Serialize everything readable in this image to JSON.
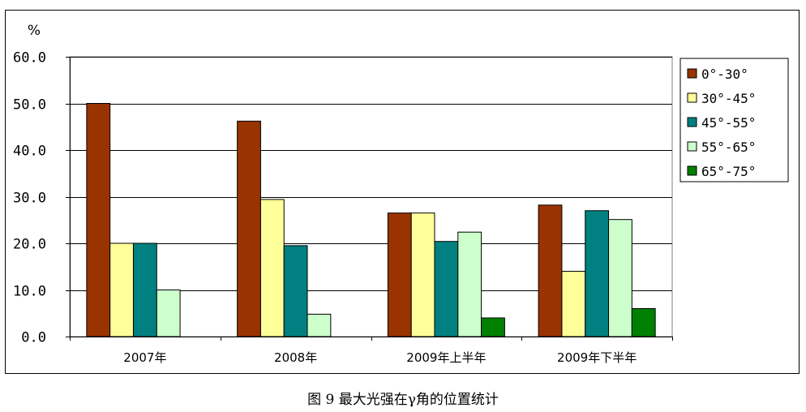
{
  "chart_data": {
    "type": "bar",
    "y_unit": "%",
    "ylim": [
      0,
      60
    ],
    "y_ticks": [
      "0.0",
      "10.0",
      "20.0",
      "30.0",
      "40.0",
      "50.0",
      "60.0"
    ],
    "categories": [
      "2007年",
      "2008年",
      "2009年上半年",
      "2009年下半年"
    ],
    "series": [
      {
        "name": "0°-30°",
        "color": "#993300",
        "values": [
          50.0,
          46.2,
          26.5,
          28.2
        ]
      },
      {
        "name": "30°-45°",
        "color": "#FFFF99",
        "values": [
          20.0,
          29.4,
          26.5,
          14.0
        ]
      },
      {
        "name": "45°-55°",
        "color": "#008080",
        "values": [
          20.0,
          19.5,
          20.4,
          27.0
        ]
      },
      {
        "name": "55°-65°",
        "color": "#CCFFCC",
        "values": [
          10.0,
          4.8,
          22.4,
          25.1
        ]
      },
      {
        "name": "65°-75°",
        "color": "#008000",
        "values": [
          0,
          0,
          4.0,
          6.0
        ]
      }
    ],
    "grid": true,
    "legend_position": "right",
    "caption": "图 9 最大光强在γ角的位置统计"
  }
}
